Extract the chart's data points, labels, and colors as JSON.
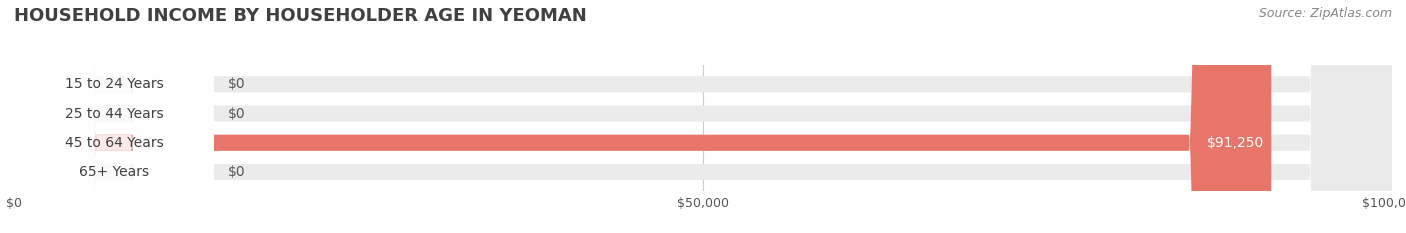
{
  "title": "HOUSEHOLD INCOME BY HOUSEHOLDER AGE IN YEOMAN",
  "source": "Source: ZipAtlas.com",
  "categories": [
    "15 to 24 Years",
    "25 to 44 Years",
    "45 to 64 Years",
    "65+ Years"
  ],
  "values": [
    0,
    0,
    91250,
    0
  ],
  "bar_colors": [
    "#f08080",
    "#f5c899",
    "#e8756a",
    "#aec6e8"
  ],
  "bar_bg_color": "#f0f0f0",
  "xlim": [
    0,
    100000
  ],
  "xticks": [
    0,
    50000,
    100000
  ],
  "xtick_labels": [
    "$0",
    "$50,000",
    "$100,000"
  ],
  "value_labels": [
    "$0",
    "$0",
    "$91,250",
    "$0"
  ],
  "label_bg_color": "#e8e8e8",
  "background_color": "#ffffff",
  "title_color": "#404040",
  "title_fontsize": 13,
  "source_fontsize": 9,
  "bar_height": 0.55,
  "label_fontsize": 10
}
